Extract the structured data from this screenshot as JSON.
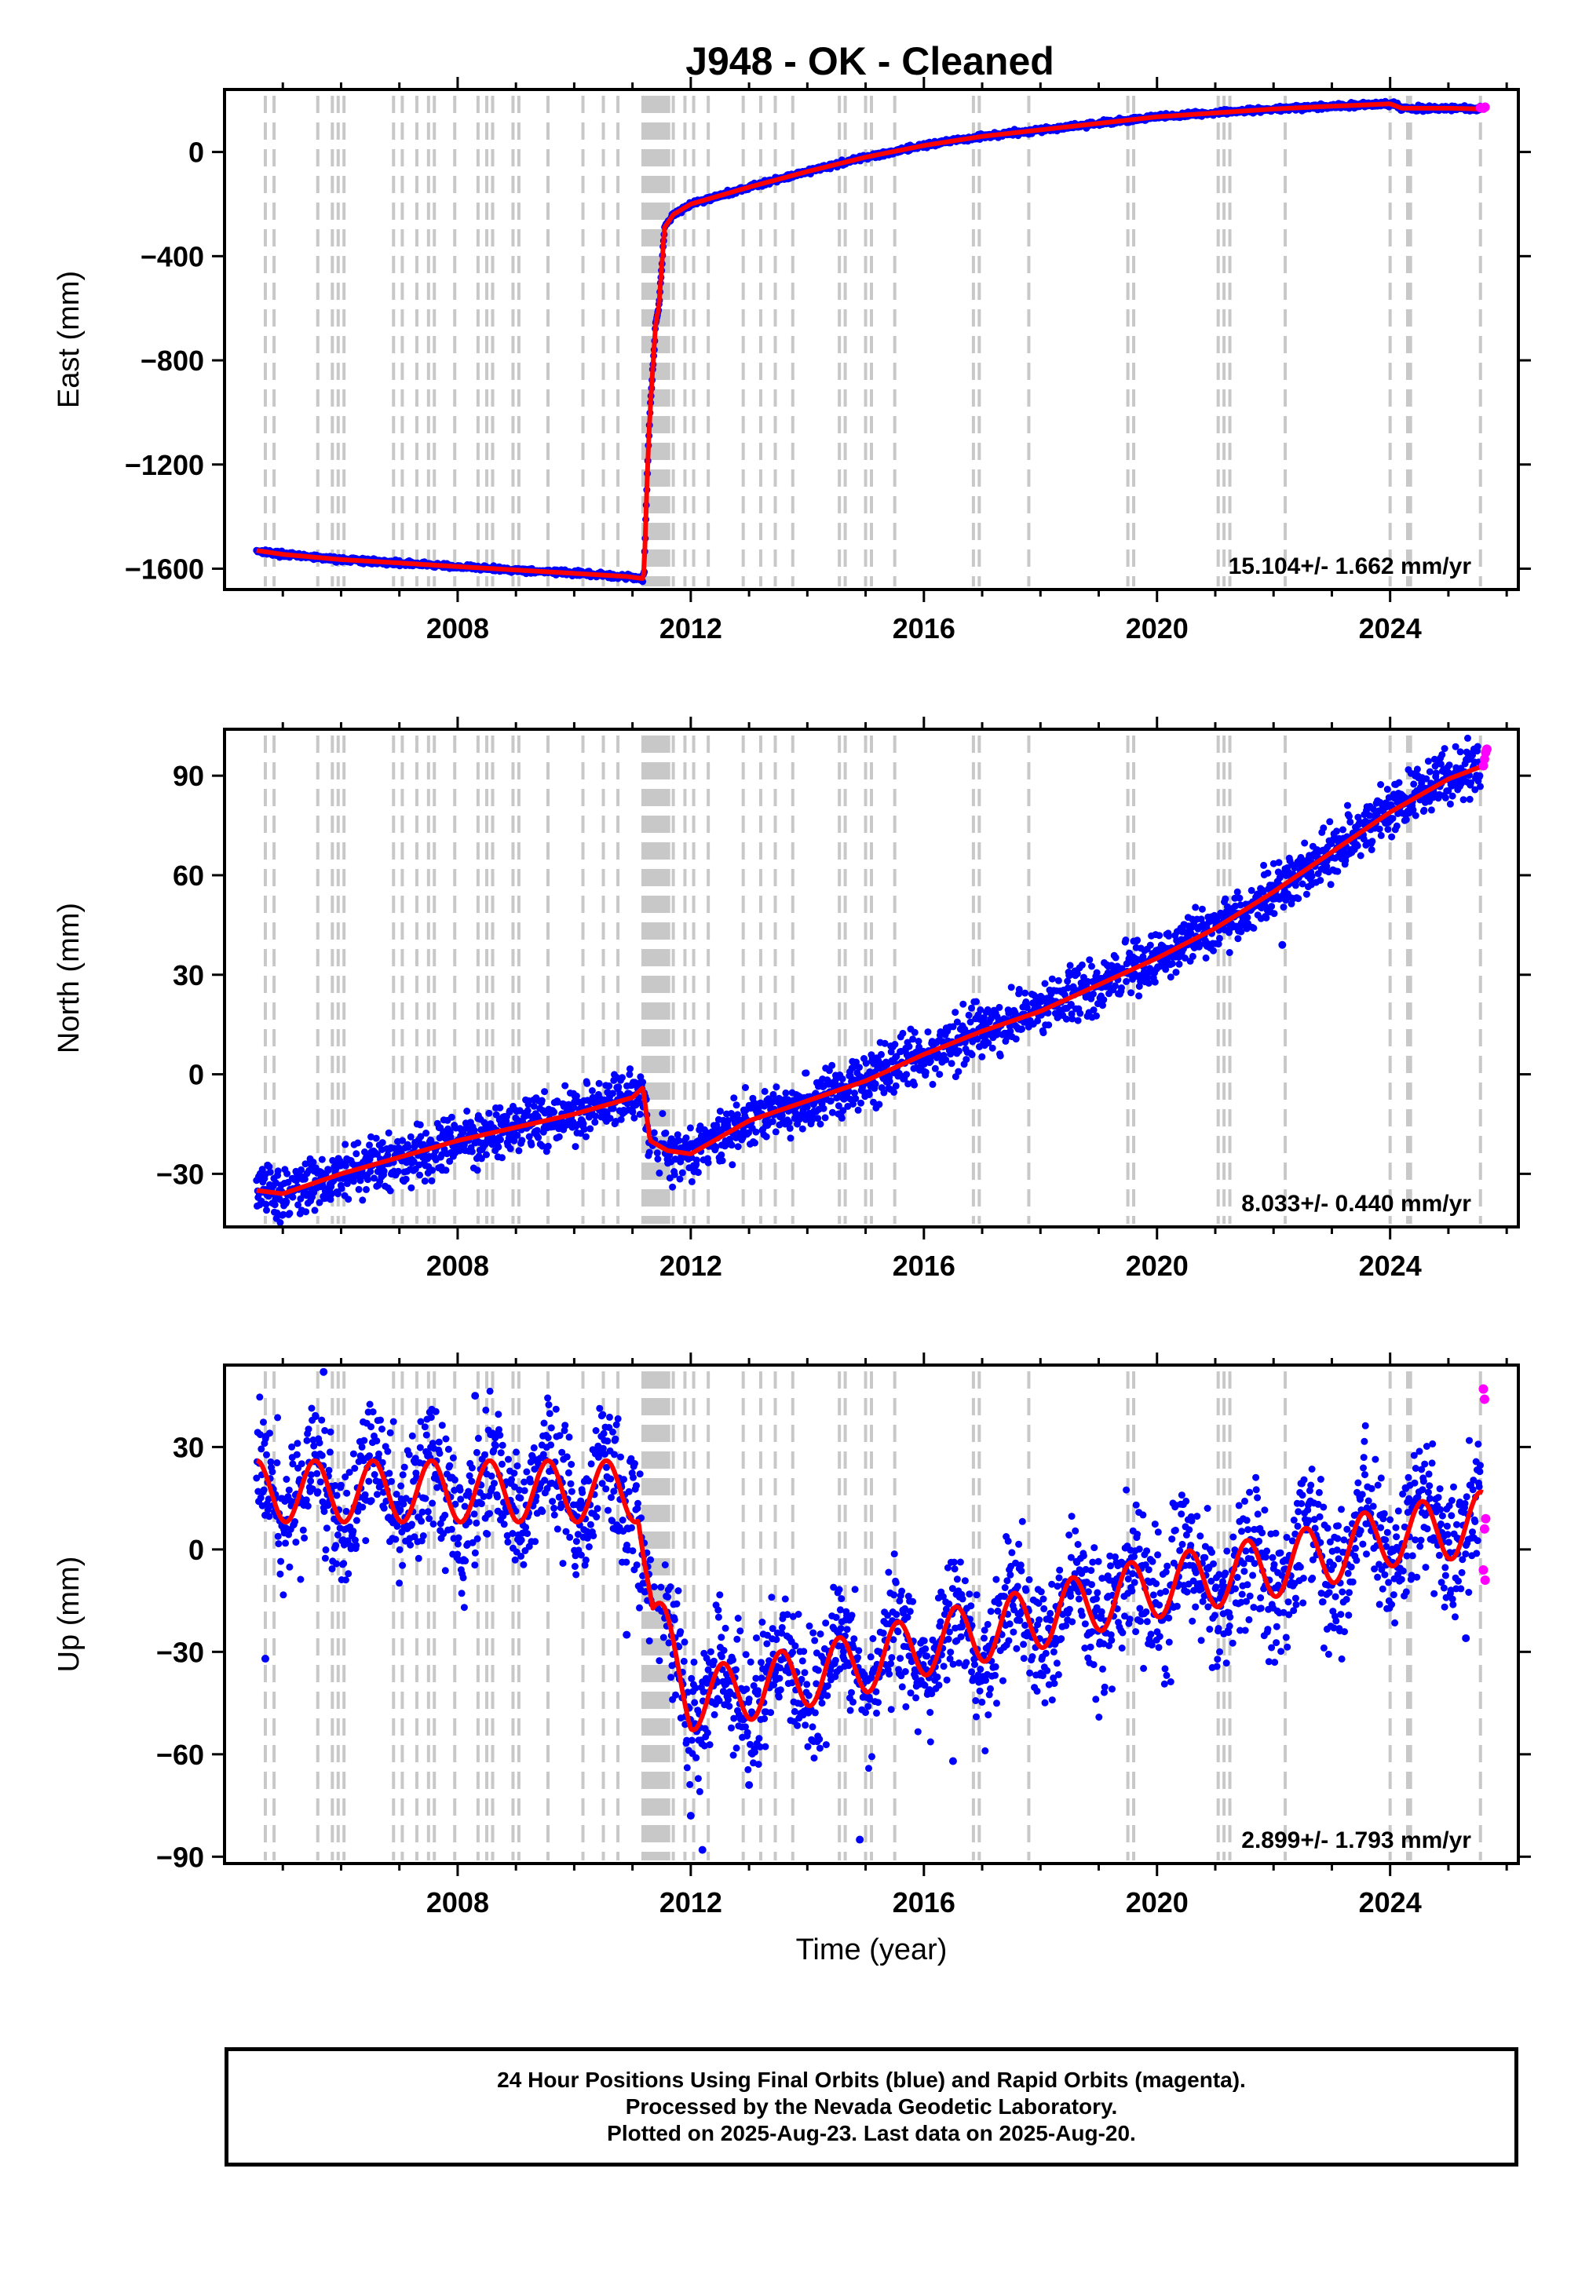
{
  "title": "J948  - OK - Cleaned",
  "colors": {
    "final": "#0000ff",
    "rapid": "#ff00ff",
    "model": "#ff0000",
    "steps": "#c8c8c8",
    "axis": "#000000"
  },
  "chart_data": [
    {
      "type": "scatter",
      "panel": "east",
      "ylabel": "East (mm)",
      "xlabel": "",
      "xlim": [
        2004.0,
        2026.2
      ],
      "ylim": [
        -1680,
        240
      ],
      "xticks": [
        2008,
        2012,
        2016,
        2020,
        2024
      ],
      "yticks": [
        0,
        -400,
        -800,
        -1200,
        -1600
      ],
      "ytick_labels": [
        "0",
        "−400",
        "−800",
        "−1200",
        "−1600"
      ],
      "rate_label": "15.104+/- 1.662 mm/yr",
      "scatter_half_width": 6,
      "model_x": [
        2004.55,
        2005.0,
        2006.0,
        2007.0,
        2008.0,
        2009.0,
        2010.0,
        2010.9,
        2011.18,
        2011.2,
        2011.26,
        2011.3,
        2011.4,
        2011.45,
        2011.55,
        2011.7,
        2012.0,
        2013.0,
        2014.0,
        2015.0,
        2016.0,
        2017.0,
        2018.0,
        2019.0,
        2020.0,
        2021.0,
        2022.0,
        2022.9,
        2023.5,
        2024.0,
        2024.2,
        2025.0,
        2025.6
      ],
      "model_y": [
        -1530,
        -1545,
        -1565,
        -1578,
        -1592,
        -1605,
        -1618,
        -1630,
        -1638,
        -1610,
        -1200,
        -1000,
        -650,
        -600,
        -290,
        -240,
        -200,
        -135,
        -75,
        -20,
        25,
        60,
        85,
        110,
        135,
        150,
        165,
        175,
        180,
        185,
        168,
        168,
        165
      ],
      "rapid_x": [
        2025.55,
        2025.6,
        2025.63
      ],
      "rapid_y": [
        170,
        168,
        172
      ]
    },
    {
      "type": "scatter",
      "panel": "north",
      "ylabel": "North (mm)",
      "xlabel": "",
      "xlim": [
        2004.0,
        2026.2
      ],
      "ylim": [
        -46,
        104
      ],
      "xticks": [
        2008,
        2012,
        2016,
        2020,
        2024
      ],
      "yticks": [
        90,
        60,
        30,
        0,
        -30
      ],
      "ytick_labels": [
        "90",
        "60",
        "30",
        "0",
        "−30"
      ],
      "rate_label": "8.033+/- 0.440 mm/yr",
      "scatter_half_width": 5,
      "model_x": [
        2004.55,
        2005.0,
        2006.0,
        2007.0,
        2008.0,
        2009.0,
        2010.0,
        2011.0,
        2011.18,
        2011.3,
        2011.6,
        2012.0,
        2013.0,
        2014.0,
        2015.0,
        2016.0,
        2017.0,
        2018.0,
        2019.0,
        2020.0,
        2021.0,
        2022.0,
        2023.0,
        2024.0,
        2024.5,
        2025.0,
        2025.6
      ],
      "model_y": [
        -35,
        -36,
        -30,
        -25,
        -20,
        -16,
        -12,
        -7,
        -4,
        -20,
        -23,
        -24,
        -14,
        -8,
        -2,
        6,
        13,
        19,
        27,
        35,
        44,
        55,
        67,
        79,
        84,
        89,
        93
      ],
      "outlier_x": [
        2022.15
      ],
      "outlier_y": [
        39
      ],
      "rapid_x": [
        2025.6,
        2025.62,
        2025.64,
        2025.66
      ],
      "rapid_y": [
        93,
        95,
        97,
        98
      ]
    },
    {
      "type": "scatter",
      "panel": "up",
      "ylabel": "Up (mm)",
      "xlabel": "Time (year)",
      "xlim": [
        2004.0,
        2026.2
      ],
      "ylim": [
        -92,
        54
      ],
      "xticks": [
        2008,
        2012,
        2016,
        2020,
        2024
      ],
      "yticks": [
        30,
        0,
        -30,
        -60,
        -90
      ],
      "ytick_labels": [
        "30",
        "0",
        "−30",
        "−60",
        "−90"
      ],
      "rate_label": "2.899+/- 1.793 mm/yr",
      "scatter_half_width": 12,
      "seasonal_amplitude": 9,
      "model_x": [
        2004.55,
        2011.1,
        2011.2,
        2011.35,
        2011.55,
        2012.0,
        2013.0,
        2014.0,
        2015.0,
        2016.0,
        2017.0,
        2018.0,
        2019.0,
        2020.0,
        2021.0,
        2022.0,
        2023.0,
        2024.0,
        2025.0,
        2025.6
      ],
      "model_base": [
        17,
        17,
        2,
        -20,
        -26,
        -44,
        -41,
        -37,
        -33,
        -28,
        -24,
        -20,
        -15,
        -11,
        -8,
        -5,
        -1,
        4,
        6,
        8
      ],
      "outlier_x": [
        2004.7,
        2010.9,
        2012.0,
        2012.2,
        2013.0,
        2014.9,
        2005.7,
        2008.3,
        2016.5,
        2025.3
      ],
      "outlier_y": [
        -32,
        -25,
        -78,
        -88,
        -69,
        -85,
        52,
        45,
        -62,
        -26
      ],
      "rapid_x": [
        2025.6,
        2025.62,
        2025.64,
        2025.62,
        2025.6,
        2025.63
      ],
      "rapid_y": [
        47,
        44,
        9,
        6,
        -6,
        -9
      ]
    }
  ],
  "step_lines": [
    2004.7,
    2004.85,
    2005.6,
    2005.85,
    2005.95,
    2006.05,
    2006.9,
    2007.05,
    2007.3,
    2007.5,
    2007.6,
    2007.95,
    2008.35,
    2008.5,
    2008.6,
    2008.95,
    2009.05,
    2009.55,
    2010.15,
    2010.5,
    2010.75,
    2011.18,
    2011.22,
    2011.26,
    2011.3,
    2011.34,
    2011.38,
    2011.42,
    2011.46,
    2011.5,
    2011.54,
    2011.58,
    2011.62,
    2011.7,
    2011.9,
    2012.05,
    2012.3,
    2012.9,
    2013.2,
    2013.45,
    2013.75,
    2014.55,
    2014.65,
    2015.0,
    2015.1,
    2015.5,
    2016.85,
    2016.95,
    2017.8,
    2019.5,
    2019.6,
    2021.05,
    2021.15,
    2021.25,
    2022.2,
    2024.0,
    2024.3,
    2024.35,
    2025.55
  ],
  "footer": {
    "line1": "24 Hour Positions Using Final Orbits (blue) and Rapid Orbits (magenta).",
    "line2": "Processed by the Nevada Geodetic Laboratory.",
    "line3": "Plotted on 2025-Aug-23. Last data on 2025-Aug-20."
  }
}
